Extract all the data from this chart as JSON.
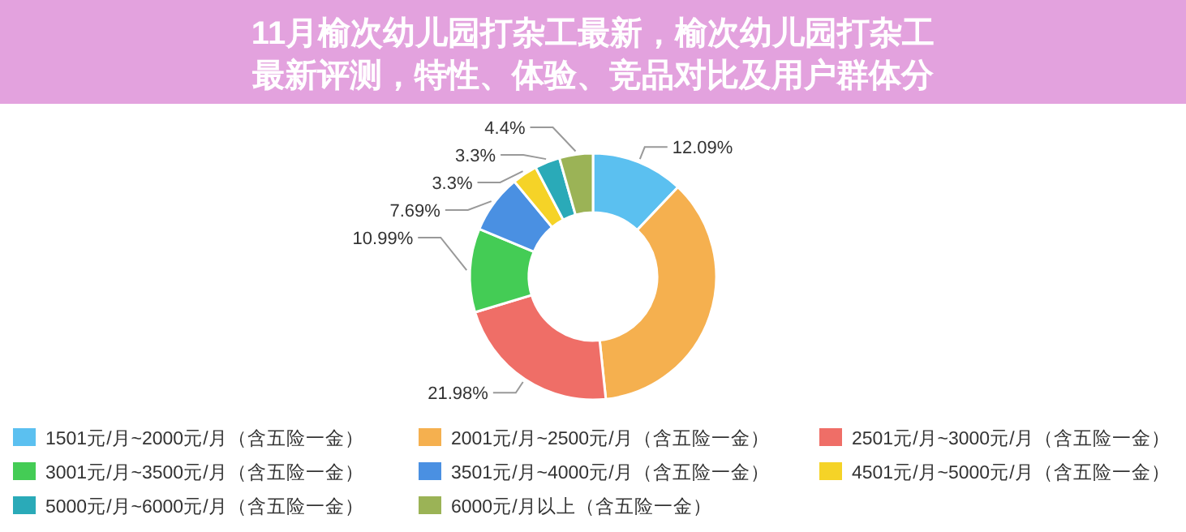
{
  "chart_data": {
    "type": "donut",
    "title": "11月榆次幼儿园打杂工最新，榆次幼儿园打杂工最新评测，特性、体验、竞品对比及用户群体分",
    "categories": [
      "1501元/月~2000元/月（含五险一金）",
      "2001元/月~2500元/月（含五险一金）",
      "2501元/月~3000元/月（含五险一金）",
      "3001元/月~3500元/月（含五险一金）",
      "3501元/月~4000元/月（含五险一金）",
      "4501元/月~5000元/月（含五险一金）",
      "5000元/月~6000元/月（含五险一金）",
      "6000元/月以上（含五险一金）"
    ],
    "values": [
      12.09,
      36.25,
      21.98,
      10.99,
      7.69,
      3.3,
      3.3,
      4.4
    ],
    "colors": [
      "#5bc0f0",
      "#f5b04f",
      "#ef6e67",
      "#44cc55",
      "#4a90e2",
      "#f5d327",
      "#2aaab8",
      "#9bb356"
    ],
    "value_labels": [
      "12.09%",
      null,
      "21.98%",
      "10.99%",
      "7.69%",
      "3.3%",
      "3.3%",
      "4.4%"
    ],
    "legend": "bottom"
  }
}
